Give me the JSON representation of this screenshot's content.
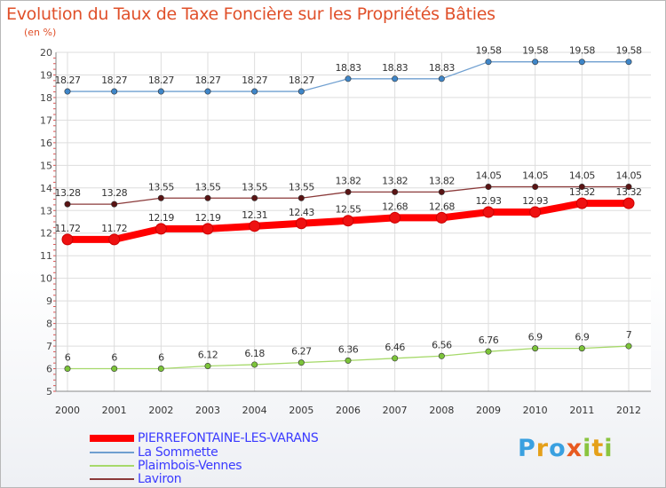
{
  "title": "Evolution du Taux de Taxe Foncière sur les Propriétés Bâties",
  "unit_label": "(en %)",
  "logo": {
    "letters": [
      "P",
      "r",
      "o",
      "x",
      "i",
      "t",
      "i"
    ],
    "colors": [
      "#3aa0e0",
      "#e5a01a",
      "#3aa0e0",
      "#e85a20",
      "#8ac43f",
      "#e5a01a",
      "#8ac43f"
    ]
  },
  "chart_data": {
    "type": "line",
    "x": [
      "2000",
      "2001",
      "2002",
      "2003",
      "2004",
      "2005",
      "2006",
      "2007",
      "2008",
      "2009",
      "2010",
      "2011",
      "2012"
    ],
    "ylim": [
      5,
      20
    ],
    "y_ticks": [
      "5",
      "6",
      "7",
      "8",
      "9",
      "10",
      "11",
      "12",
      "13",
      "14",
      "15",
      "16",
      "17",
      "18",
      "19",
      "20"
    ],
    "grid": true,
    "legend_position": "bottom-left",
    "series": [
      {
        "name": "PIERREFONTAINE-LES-VARANS",
        "color": "#ff0000",
        "marker": "#ee1111",
        "values": [
          11.72,
          11.72,
          12.19,
          12.19,
          12.31,
          12.43,
          12.55,
          12.68,
          12.68,
          12.93,
          12.93,
          13.32,
          13.32
        ],
        "labels": [
          "11.72",
          "11.72",
          "12.19",
          "12.19",
          "12.31",
          "12.43",
          "12.55",
          "12.68",
          "12.68",
          "12.93",
          "12.93",
          "13.32",
          "13.32"
        ]
      },
      {
        "name": "La Sommette",
        "color": "#6f9fd0",
        "marker": "#3f86c8",
        "values": [
          18.27,
          18.27,
          18.27,
          18.27,
          18.27,
          18.27,
          18.83,
          18.83,
          18.83,
          19.58,
          19.58,
          19.58,
          19.58
        ],
        "labels": [
          "18.27",
          "18.27",
          "18.27",
          "18.27",
          "18.27",
          "18.27",
          "18.83",
          "18.83",
          "18.83",
          "19.58",
          "19.58",
          "19.58",
          "19.58"
        ]
      },
      {
        "name": "Plaimbois-Vennes",
        "color": "#a6d96a",
        "marker": "#7cc43a",
        "values": [
          6,
          6,
          6,
          6.12,
          6.18,
          6.27,
          6.36,
          6.46,
          6.56,
          6.76,
          6.9,
          6.9,
          7
        ],
        "labels": [
          "6",
          "6",
          "6",
          "6.12",
          "6.18",
          "6.27",
          "6.36",
          "6.46",
          "6.56",
          "6.76",
          "6.9",
          "6.9",
          "7"
        ]
      },
      {
        "name": "Laviron",
        "color": "#8b3a3a",
        "marker": "#5a1414",
        "values": [
          13.28,
          13.28,
          13.55,
          13.55,
          13.55,
          13.55,
          13.82,
          13.82,
          13.82,
          14.05,
          14.05,
          14.05,
          14.05
        ],
        "labels": [
          "13.28",
          "13.28",
          "13.55",
          "13.55",
          "13.55",
          "13.55",
          "13.82",
          "13.82",
          "13.82",
          "14.05",
          "14.05",
          "14.05",
          "14.05"
        ]
      }
    ]
  }
}
